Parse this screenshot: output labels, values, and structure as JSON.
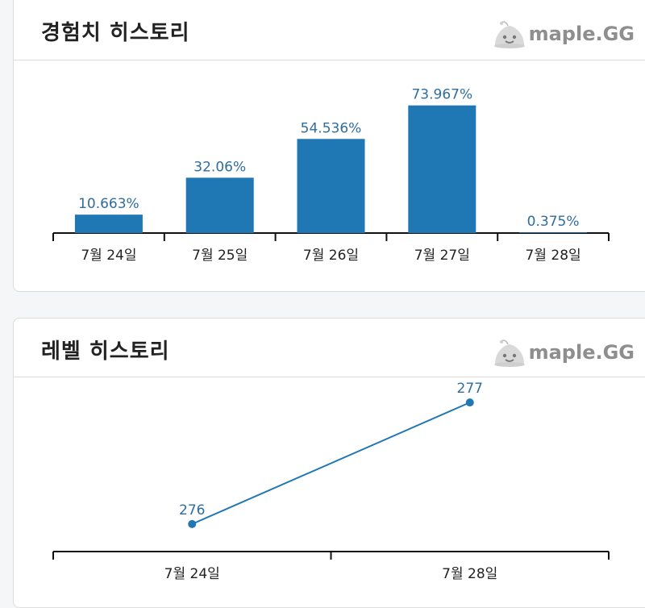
{
  "brand": {
    "logo_text": "maple.GG"
  },
  "exp_card": {
    "title": "경험치 히스토리"
  },
  "level_card": {
    "title": "레벨 히스토리"
  },
  "colors": {
    "bar": "#1f77b4",
    "label": "#2f6d9e",
    "axis": "#111111"
  },
  "chart_data": [
    {
      "type": "bar",
      "title": "경험치 히스토리",
      "categories": [
        "7월 24일",
        "7월 25일",
        "7월 26일",
        "7월 27일",
        "7월 28일"
      ],
      "values": [
        10.663,
        32.06,
        54.536,
        73.967,
        0.375
      ],
      "value_labels": [
        "10.663%",
        "32.06%",
        "54.536%",
        "73.967%",
        "0.375%"
      ],
      "ylim": [
        0,
        100
      ],
      "xlabel": "",
      "ylabel": ""
    },
    {
      "type": "line",
      "title": "레벨 히스토리",
      "categories": [
        "7월 24일",
        "7월 28일"
      ],
      "values": [
        276,
        277
      ],
      "value_labels": [
        "276",
        "277"
      ],
      "ylim": [
        275.8,
        277.2
      ],
      "xlabel": "",
      "ylabel": ""
    }
  ]
}
